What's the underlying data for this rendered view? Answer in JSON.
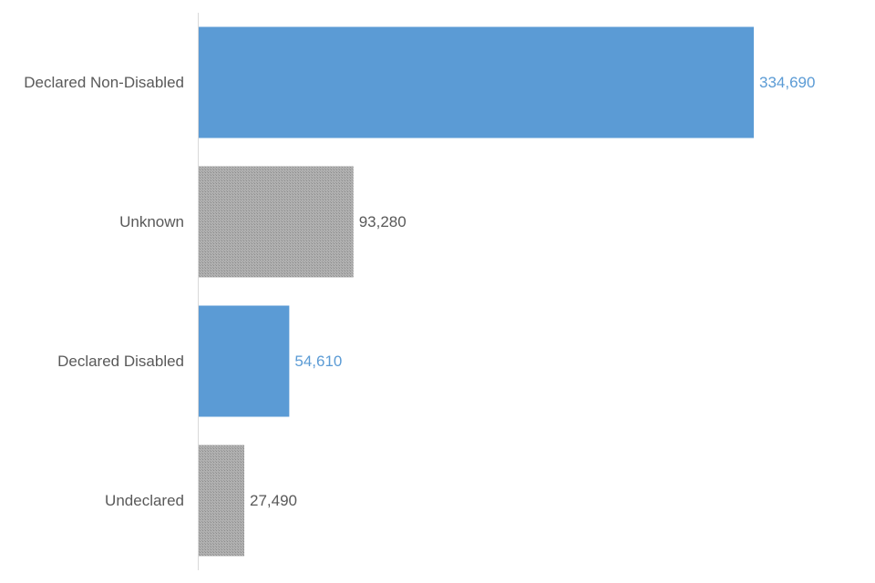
{
  "chart_data": {
    "type": "bar",
    "orientation": "horizontal",
    "title": "",
    "xlabel": "",
    "ylabel": "",
    "grid": false,
    "xlim": [
      0,
      350000
    ],
    "categories": [
      "Declared Non-Disabled",
      "Unknown",
      "Declared Disabled",
      "Undeclared"
    ],
    "values": [
      334690,
      93280,
      54610,
      27490
    ],
    "value_labels": [
      "334,690",
      "93,280",
      "54,610",
      "27,490"
    ],
    "bar_styles": [
      "solid",
      "hatched",
      "solid",
      "hatched"
    ],
    "colors": {
      "solid_fill": "#5b9bd5",
      "hatched_fill": "#a6a6a6",
      "solid_label": "#5b9bd5",
      "hatched_label": "#595959",
      "axis": "#d9d9d9"
    }
  }
}
